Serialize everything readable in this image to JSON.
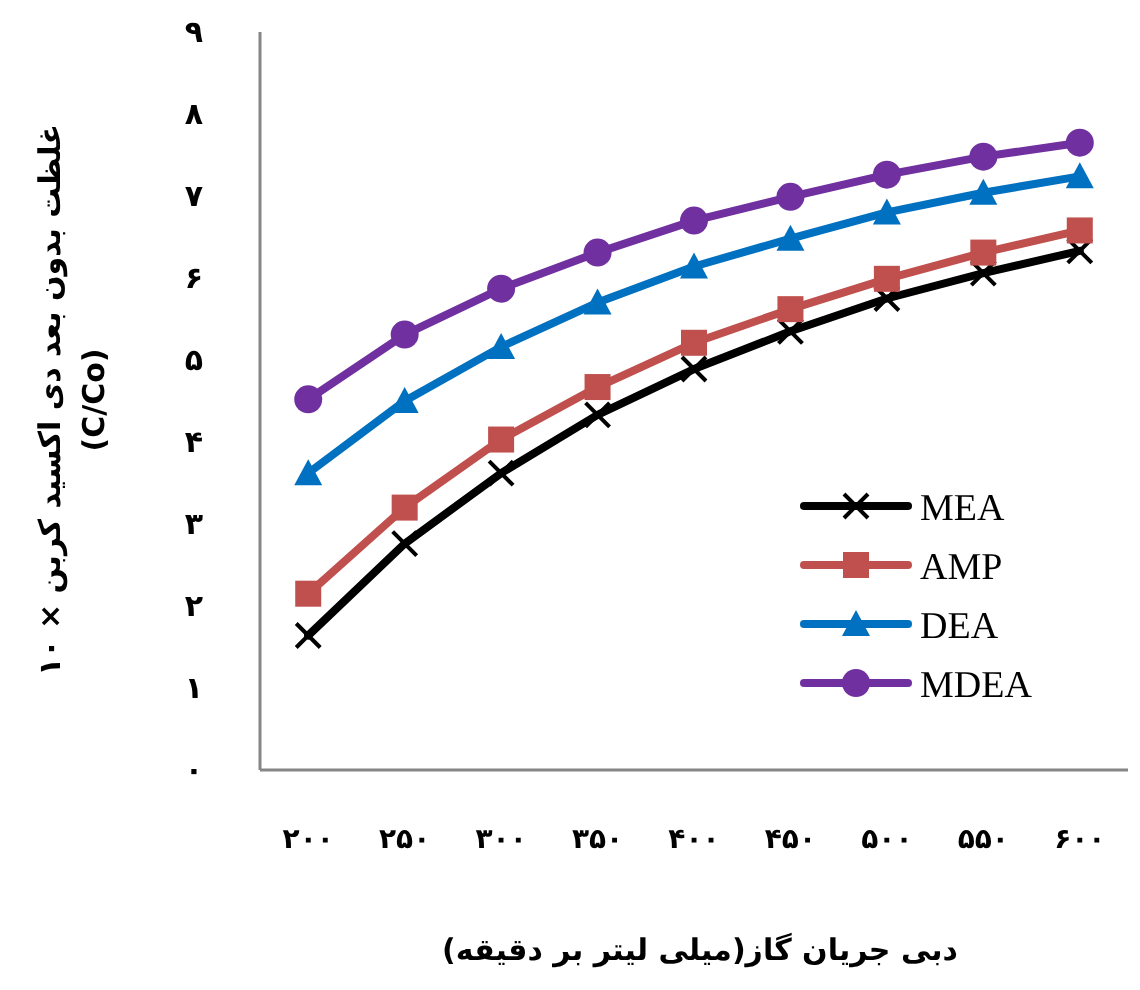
{
  "chart_data": {
    "type": "line",
    "xlabel": "دبی جریان گاز(میلی لیتر بر دقیقه)",
    "ylabel": "غلظت بدون بعد دی اکسید کربن × ۱۰\n(C/Co)",
    "categories": [
      "۲۰۰",
      "۲۵۰",
      "۳۰۰",
      "۳۵۰",
      "۴۰۰",
      "۴۵۰",
      "۵۰۰",
      "۵۵۰",
      "۶۰۰"
    ],
    "ylim": [
      0,
      9
    ],
    "yticks": [
      {
        "value": 0,
        "label": "۰"
      },
      {
        "value": 1,
        "label": "۱"
      },
      {
        "value": 2,
        "label": "۲"
      },
      {
        "value": 3,
        "label": "۳"
      },
      {
        "value": 4,
        "label": "۴"
      },
      {
        "value": 5,
        "label": "۵"
      },
      {
        "value": 6,
        "label": "۶"
      },
      {
        "value": 7,
        "label": "۷"
      },
      {
        "value": 8,
        "label": "۸"
      },
      {
        "value": 9,
        "label": "۹"
      }
    ],
    "legend": "bottom right",
    "series": [
      {
        "name": "MEA",
        "color": "#000000",
        "marker": "cross",
        "values": [
          1.64,
          2.76,
          3.62,
          4.33,
          4.89,
          5.35,
          5.75,
          6.06,
          6.33
        ]
      },
      {
        "name": "AMP",
        "color": "#c0504d",
        "marker": "square",
        "values": [
          2.15,
          3.2,
          4.03,
          4.67,
          5.21,
          5.62,
          5.99,
          6.31,
          6.58
        ]
      },
      {
        "name": "DEA",
        "color": "#0070c0",
        "marker": "triangle",
        "values": [
          3.62,
          4.5,
          5.16,
          5.7,
          6.14,
          6.48,
          6.8,
          7.04,
          7.24
        ]
      },
      {
        "name": "MDEA",
        "color": "#7030a0",
        "marker": "circle",
        "values": [
          4.52,
          5.31,
          5.87,
          6.31,
          6.7,
          6.99,
          7.26,
          7.48,
          7.65
        ]
      }
    ]
  }
}
